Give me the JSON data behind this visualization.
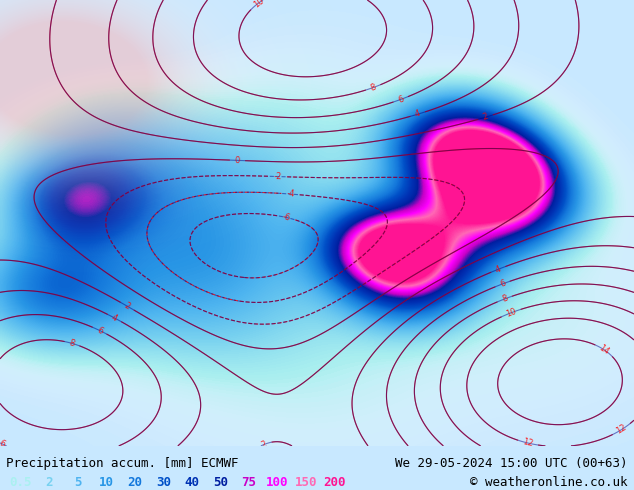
{
  "title_left": "Precipitation accum. [mm] ECMWF",
  "title_right": "We 29-05-2024 15:00 UTC (00+63)",
  "copyright": "© weatheronline.co.uk",
  "legend_values": [
    "0.5",
    "2",
    "5",
    "10",
    "20",
    "30",
    "40",
    "50",
    "75",
    "100",
    "150",
    "200"
  ],
  "legend_colors": [
    "#aaf0f0",
    "#78d2f0",
    "#50b4f0",
    "#2896e6",
    "#1478dc",
    "#0050c8",
    "#0032b4",
    "#001ea0",
    "#c800c8",
    "#ff00ff",
    "#ff69b4",
    "#ff1493"
  ],
  "bg_color": "#e8f4ff",
  "map_bg": "#c8e8ff",
  "bottom_bar_color": "#d0e8f8",
  "text_color": "#000000",
  "font_size_title": 9,
  "font_size_legend": 9,
  "font_size_copyright": 9,
  "figsize": [
    6.34,
    4.9
  ],
  "dpi": 100
}
